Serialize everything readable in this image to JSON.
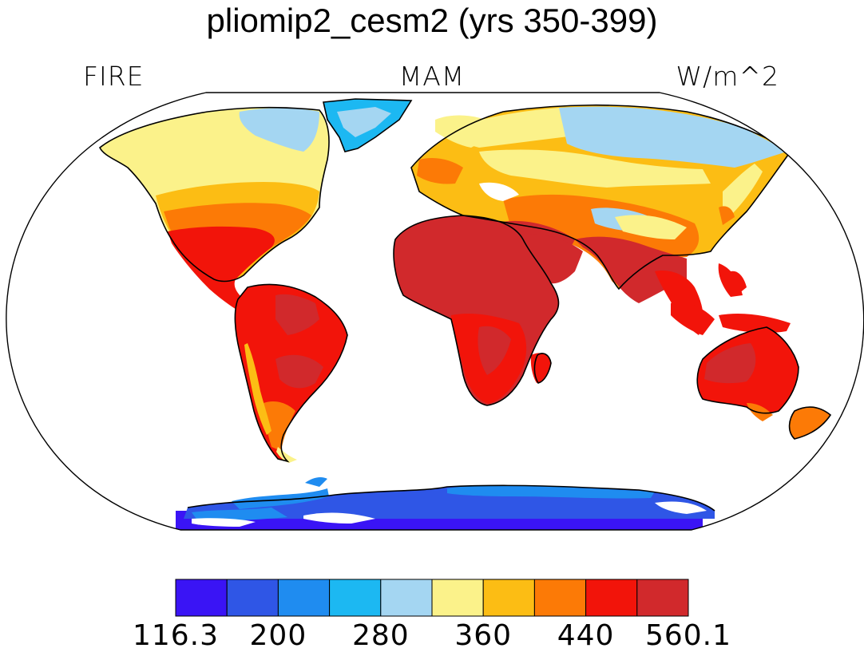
{
  "title": "pliomip2_cesm2 (yrs 350-399)",
  "left_label": "FIRE",
  "center_label": "MAM",
  "right_label": "W/m^2",
  "colorbar": {
    "colors": [
      "#3a14f5",
      "#2f56e6",
      "#1f8cf0",
      "#1cb8f2",
      "#a4d6f2",
      "#fbf28a",
      "#fcbd14",
      "#fc7a06",
      "#f2140a",
      "#d1292c"
    ],
    "tick_labels": [
      "116.3",
      "200",
      "280",
      "360",
      "440",
      "560.1"
    ]
  },
  "ocean_color": "#ffffff",
  "coast_color": "#000000"
}
